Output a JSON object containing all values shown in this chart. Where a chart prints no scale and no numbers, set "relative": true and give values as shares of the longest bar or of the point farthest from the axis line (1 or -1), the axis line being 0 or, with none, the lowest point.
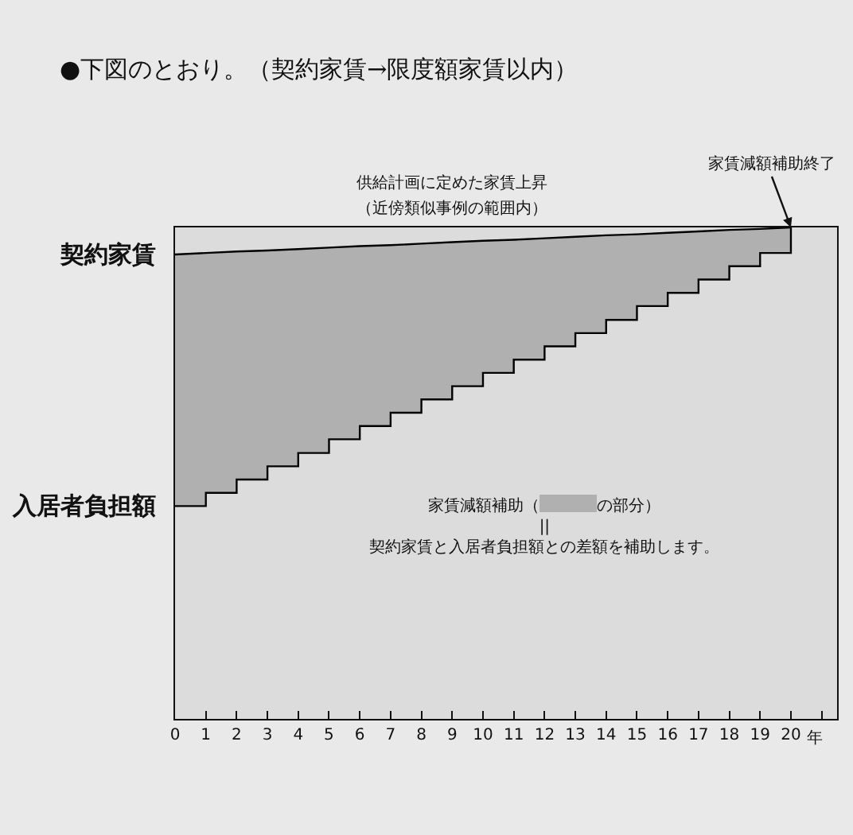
{
  "chart_data": {
    "type": "line",
    "relative": true,
    "title": "●下図のとおり。（契約家賃→限度額家賃以内）",
    "xlabel": "年",
    "xlim": [
      0,
      21.5
    ],
    "xticks": [
      0,
      1,
      2,
      3,
      4,
      5,
      6,
      7,
      8,
      9,
      10,
      11,
      12,
      13,
      14,
      15,
      16,
      17,
      18,
      19,
      20,
      {
        "value": 21,
        "label": null
      }
    ],
    "grid": false,
    "marker": "none",
    "line_style": "solid",
    "series": [
      {
        "type": "step",
        "color": "#000000",
        "x": [
          0,
          1,
          2,
          3,
          4,
          5,
          6,
          7,
          8,
          9,
          10,
          11,
          12,
          13,
          14,
          15,
          16,
          17,
          18,
          19,
          20
        ],
        "values": [
          0.433,
          0.46,
          0.487,
          0.514,
          0.541,
          0.569,
          0.596,
          0.623,
          0.65,
          0.677,
          0.704,
          0.731,
          0.758,
          0.785,
          0.812,
          0.84,
          0.867,
          0.894,
          0.921,
          0.948,
          1.0
        ]
      },
      {
        "type": "line",
        "color": "#000000",
        "x": [
          0,
          1,
          2,
          3,
          4,
          5,
          6,
          7,
          8,
          9,
          10,
          11,
          12,
          13,
          14,
          15,
          16,
          17,
          18,
          19,
          20
        ],
        "values": [
          0.945,
          0.948,
          0.951,
          0.953,
          0.956,
          0.959,
          0.962,
          0.964,
          0.967,
          0.97,
          0.973,
          0.975,
          0.978,
          0.981,
          0.984,
          0.986,
          0.989,
          0.992,
          0.995,
          0.997,
          1.0
        ],
        "lower": [
          0.433,
          0.46,
          0.487,
          0.514,
          0.541,
          0.569,
          0.596,
          0.623,
          0.65,
          0.677,
          0.704,
          0.731,
          0.758,
          0.785,
          0.812,
          0.84,
          0.867,
          0.894,
          0.921,
          0.948,
          1.0
        ],
        "upper": [
          0.945,
          0.948,
          0.951,
          0.953,
          0.956,
          0.959,
          0.962,
          0.964,
          0.967,
          0.97,
          0.973,
          0.975,
          0.978,
          0.981,
          0.984,
          0.986,
          0.989,
          0.992,
          0.995,
          0.997,
          1.0
        ]
      }
    ],
    "annotations": [
      {
        "text": "契約家賃",
        "x": 0,
        "y": 0.945
      },
      {
        "text": "入居者負担額",
        "x": 0,
        "y": 0.433
      },
      "供給計画に定めた家賃上昇",
      {
        "text": "（近傍類似事例の範囲内）",
        "x": 9,
        "y": 0.97
      },
      {
        "text": "家賃減額補助終了",
        "x": 20,
        "y": 1.0
      },
      "家賃減額補助（　　　　の部分）\n||\n契約家賃と入居者負担額との差額を補助します。"
    ]
  }
}
